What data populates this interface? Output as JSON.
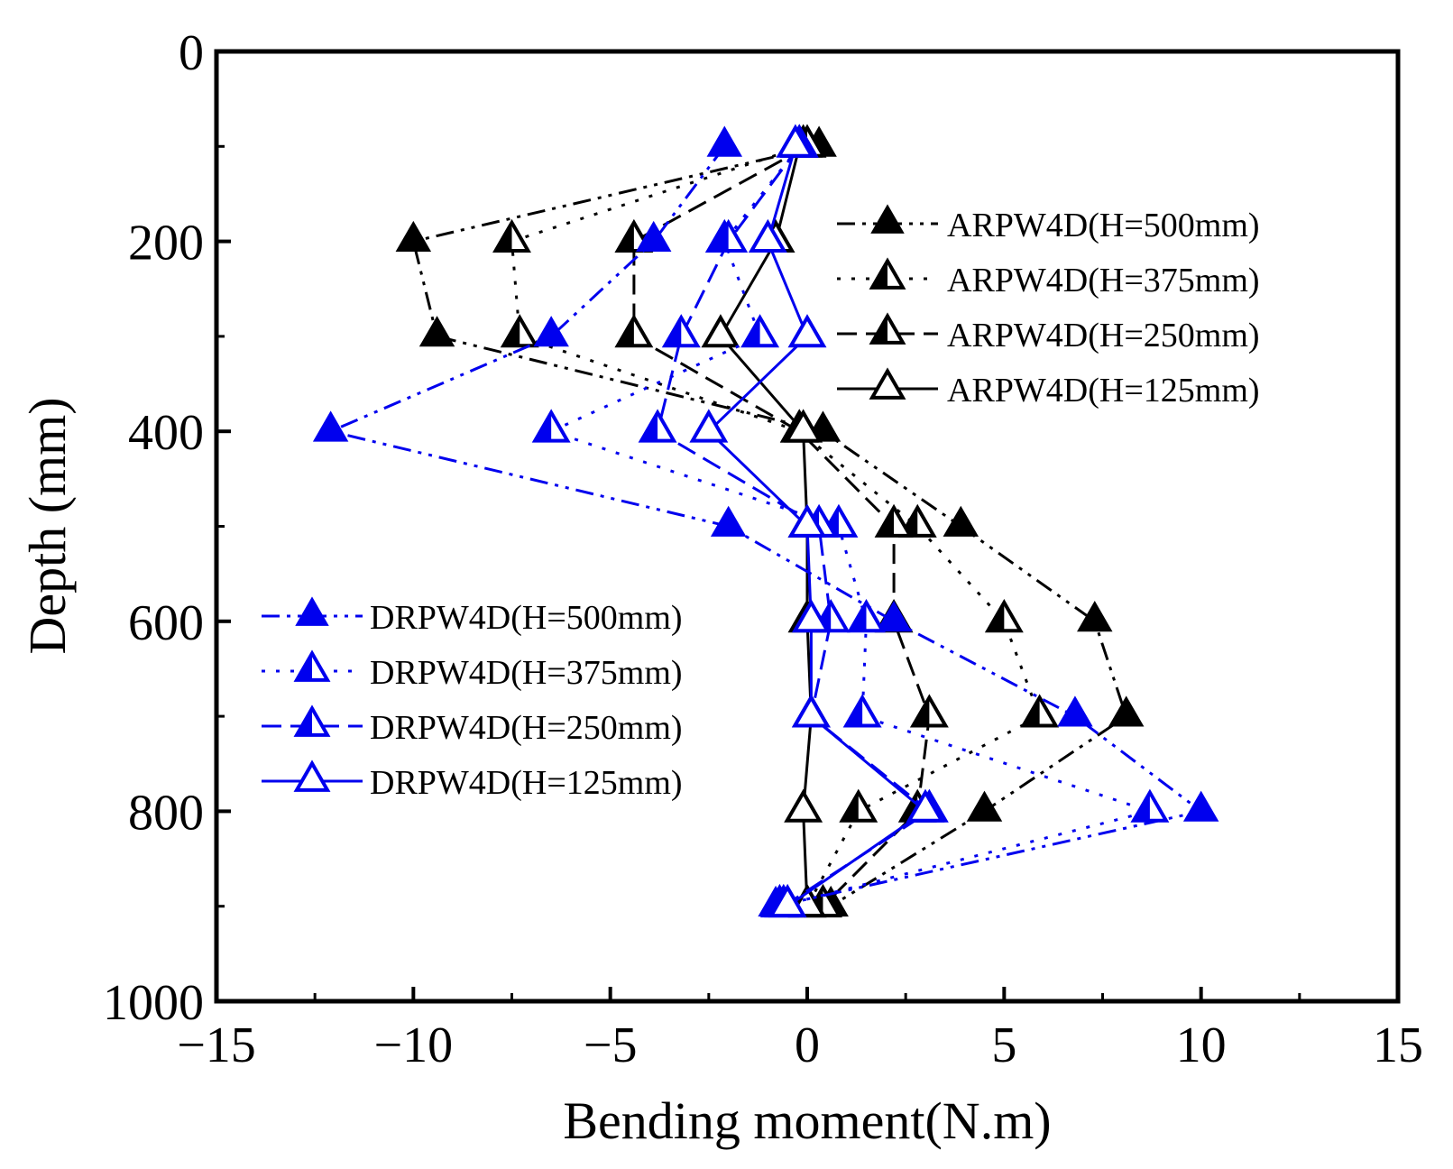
{
  "chart_data": {
    "type": "line",
    "title": "",
    "xlabel": "Bending moment(N.m)",
    "ylabel": "Depth (mm)",
    "xlim": [
      -15,
      15
    ],
    "ylim": [
      0,
      1000
    ],
    "y_inverted": true,
    "x_ticks": [
      "−15",
      "−10",
      "−5",
      "0",
      "5",
      "10",
      "15"
    ],
    "y_ticks": [
      "0",
      "200",
      "400",
      "600",
      "800",
      "1000"
    ],
    "grid": false,
    "y": [
      100,
      200,
      300,
      400,
      500,
      600,
      700,
      800,
      900
    ],
    "series": [
      {
        "name": "ARPW4D(H=500mm)",
        "color": "#000000",
        "marker": "filled-triangle",
        "dash": "20 8 4 8 4 8",
        "values": [
          0.3,
          -10.0,
          -9.4,
          0.4,
          3.9,
          7.3,
          8.1,
          4.5,
          0.6
        ]
      },
      {
        "name": "ARPW4D(H=375mm)",
        "color": "#000000",
        "marker": "half-filled-triangle",
        "dash": "4 12",
        "values": [
          -0.1,
          -7.5,
          -7.3,
          -0.2,
          2.8,
          5.0,
          5.9,
          1.3,
          0.0
        ]
      },
      {
        "name": "ARPW4D(H=250mm)",
        "color": "#000000",
        "marker": "half-filled-triangle",
        "dash": "22 10",
        "values": [
          0.0,
          -4.4,
          -4.4,
          -0.2,
          2.2,
          2.2,
          3.1,
          2.8,
          0.4
        ]
      },
      {
        "name": "ARPW4D(H=125mm)",
        "color": "#000000",
        "marker": "open-triangle",
        "dash": "",
        "values": [
          -0.2,
          -0.8,
          -2.2,
          -0.1,
          0.0,
          0.0,
          0.1,
          -0.1,
          0.0
        ]
      },
      {
        "name": "DRPW4D(H=500mm)",
        "color": "#0000ee",
        "marker": "filled-triangle",
        "dash": "20 8 4 8 4 8",
        "values": [
          -2.1,
          -3.9,
          -6.5,
          -12.1,
          -2.0,
          2.2,
          6.8,
          10.0,
          -0.8
        ]
      },
      {
        "name": "DRPW4D(H=375mm)",
        "color": "#0000ee",
        "marker": "half-filled-triangle",
        "dash": "4 12",
        "values": [
          -0.2,
          -2.1,
          -1.2,
          -6.5,
          0.8,
          1.5,
          1.4,
          8.7,
          -0.7
        ]
      },
      {
        "name": "DRPW4D(H=250mm)",
        "color": "#0000ee",
        "marker": "half-filled-triangle",
        "dash": "22 10",
        "values": [
          -0.2,
          -2.0,
          -3.2,
          -3.8,
          0.3,
          0.6,
          0.1,
          3.1,
          -0.6
        ]
      },
      {
        "name": "DRPW4D(H=125mm)",
        "color": "#0000ee",
        "marker": "open-triangle",
        "dash": "",
        "values": [
          -0.3,
          -1.0,
          0.0,
          -2.5,
          0.0,
          0.1,
          0.1,
          3.0,
          -0.5
        ]
      }
    ],
    "legends": [
      {
        "position": "upper-right",
        "series": [
          0,
          1,
          2,
          3
        ]
      },
      {
        "position": "lower-left",
        "series": [
          4,
          5,
          6,
          7
        ]
      }
    ]
  }
}
